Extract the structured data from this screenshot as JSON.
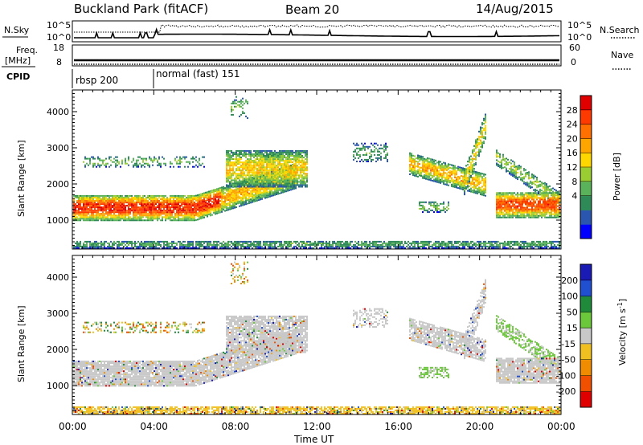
{
  "header": {
    "station": "Buckland Park (fitACF)",
    "beam": "Beam 20",
    "date": "14/Aug/2015"
  },
  "top_panel": {
    "left_label": "N.Sky",
    "right_label": "N.Search",
    "left_ticks": [
      "10^5",
      "10^0"
    ],
    "right_ticks": [
      "10^5",
      "10^0"
    ]
  },
  "freq_panel": {
    "label_line1": "Freq.",
    "label_line2": "[MHz]",
    "left_ticks": [
      "18",
      "8"
    ],
    "right_ticks": [
      "60",
      "0"
    ],
    "right_label": "Nave"
  },
  "cpid": {
    "label": "CPID",
    "modes": [
      {
        "text": "rbsp 200",
        "start_hour": 0
      },
      {
        "text": "normal (fast) 151",
        "start_hour": 4
      }
    ]
  },
  "time_axis": {
    "label": "Time UT",
    "ticks": [
      "00:00",
      "04:00",
      "08:00",
      "12:00",
      "16:00",
      "20:00",
      "00:00"
    ]
  },
  "chart_data": [
    {
      "type": "heatmap",
      "name": "power",
      "ylabel": "Slant Range [km]",
      "xlabel": "",
      "yticks": [
        "1000",
        "2000",
        "3000",
        "4000"
      ],
      "ylim": [
        200,
        4600
      ],
      "xlim_hours": [
        0,
        24
      ],
      "colorbar": {
        "label": "Power [dB]",
        "ticks": [
          "28",
          "24",
          "20",
          "16",
          "12",
          "8",
          "4"
        ],
        "range": [
          0,
          32
        ],
        "colors": [
          "#0000ff",
          "#2a56b0",
          "#2e8b57",
          "#5ab35a",
          "#9acd32",
          "#ffd700",
          "#ffa500",
          "#ff7000",
          "#ff3a00",
          "#e00000"
        ]
      }
    },
    {
      "type": "heatmap",
      "name": "velocity",
      "ylabel": "Slant Range [km]",
      "xlabel": "Time UT",
      "yticks": [
        "1000",
        "2000",
        "3000",
        "4000"
      ],
      "ylim": [
        200,
        4600
      ],
      "xlim_hours": [
        0,
        24
      ],
      "colorbar": {
        "label": "Velocity [m s",
        "label_sup": "-1",
        "label_end": "]",
        "ticks": [
          "200",
          "100",
          "50",
          "15",
          "-15",
          "-50",
          "-100",
          "-200"
        ],
        "colors": [
          "#1a1ab4",
          "#2050d0",
          "#1e8a3a",
          "#6bc83a",
          "#c8c8c8",
          "#f0c020",
          "#f08c00",
          "#f05000",
          "#e00000"
        ]
      }
    }
  ]
}
